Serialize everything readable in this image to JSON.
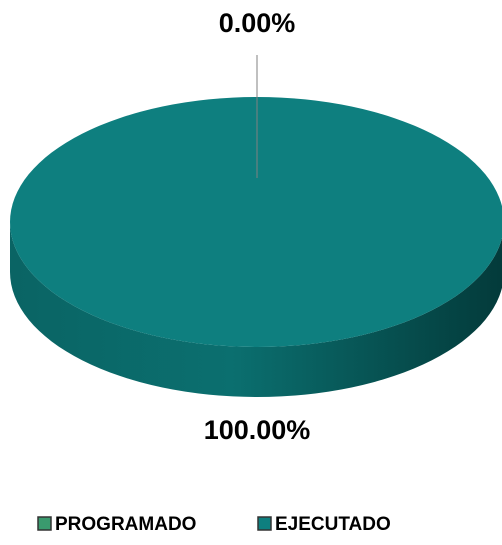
{
  "chart_data": {
    "type": "pie",
    "categories": [
      "PROGRAMADO",
      "EJECUTADO"
    ],
    "values": [
      0,
      100
    ],
    "value_labels": [
      "0.00%",
      "100.00%"
    ],
    "colors": [
      "#3a9a6e",
      "#0e7f7f"
    ],
    "legend": "bottom"
  }
}
